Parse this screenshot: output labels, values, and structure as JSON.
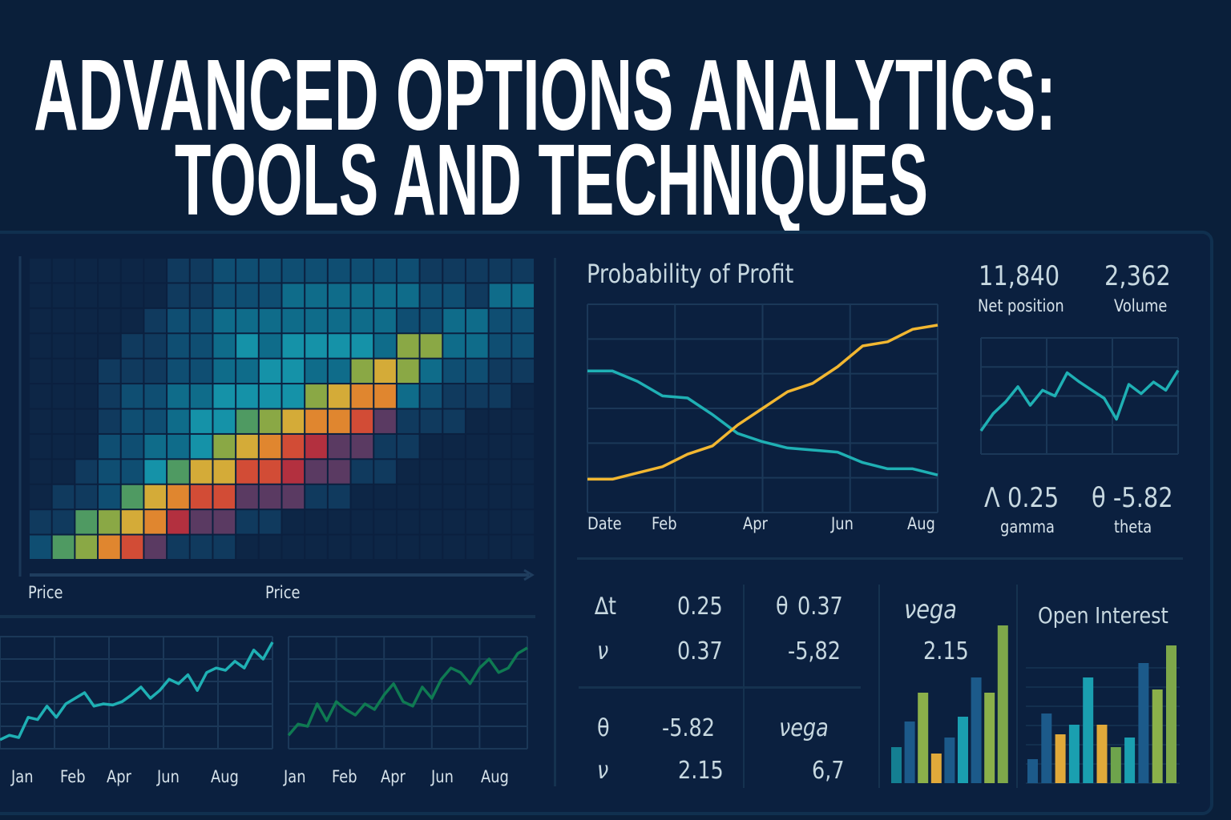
{
  "header": {
    "title_line1": "ADVANCED OPTIONS ANALYTICS:",
    "title_line2": "TOOLS AND TECHNIQUES"
  },
  "colors": {
    "background": "#0a1f3a",
    "panel": "#0b203f",
    "teal": "#1fb0b4",
    "yellow": "#f2b731",
    "green": "#0f7a52",
    "grid": "#1b3858"
  },
  "chart_data": [
    {
      "id": "heatmap",
      "type": "heatmap",
      "xlabels": [
        "Price",
        "Price"
      ],
      "colormap": [
        "#0d2646",
        "#103a5e",
        "#0f4e72",
        "#0f6c8a",
        "#1592a8",
        "#4f9a62",
        "#8aa845",
        "#d4ab38",
        "#e0862f",
        "#d24c36",
        "#b3303f",
        "#5a3a62"
      ],
      "levels": [
        [
          0,
          0,
          0,
          0,
          0,
          0,
          1,
          1,
          2,
          2,
          2,
          2,
          2,
          2,
          2,
          2,
          2,
          1,
          1,
          1,
          1,
          1
        ],
        [
          0,
          0,
          0,
          0,
          0,
          0,
          1,
          1,
          2,
          2,
          2,
          3,
          3,
          3,
          3,
          3,
          3,
          2,
          2,
          1,
          3,
          3
        ],
        [
          0,
          0,
          0,
          0,
          0,
          1,
          2,
          2,
          3,
          3,
          3,
          3,
          3,
          3,
          3,
          3,
          2,
          2,
          3,
          3,
          2,
          2
        ],
        [
          0,
          0,
          0,
          0,
          1,
          1,
          2,
          2,
          3,
          4,
          3,
          4,
          4,
          4,
          4,
          3,
          6,
          6,
          3,
          3,
          2,
          2
        ],
        [
          0,
          0,
          0,
          1,
          1,
          1,
          2,
          2,
          3,
          3,
          4,
          4,
          3,
          3,
          6,
          7,
          6,
          3,
          2,
          2,
          1,
          1
        ],
        [
          0,
          0,
          0,
          1,
          2,
          2,
          3,
          3,
          4,
          4,
          4,
          4,
          6,
          7,
          8,
          8,
          3,
          2,
          1,
          1,
          1,
          0
        ],
        [
          0,
          0,
          0,
          1,
          2,
          2,
          3,
          4,
          4,
          5,
          6,
          7,
          8,
          8,
          9,
          11,
          1,
          1,
          1,
          0,
          0,
          0
        ],
        [
          0,
          0,
          0,
          2,
          2,
          3,
          3,
          4,
          6,
          7,
          8,
          9,
          10,
          11,
          11,
          1,
          1,
          0,
          0,
          0,
          0,
          0
        ],
        [
          0,
          0,
          1,
          2,
          2,
          4,
          5,
          7,
          7,
          9,
          9,
          10,
          11,
          11,
          1,
          1,
          0,
          0,
          0,
          0,
          0,
          0
        ],
        [
          0,
          1,
          1,
          2,
          5,
          7,
          8,
          9,
          9,
          11,
          11,
          11,
          1,
          1,
          0,
          0,
          0,
          0,
          0,
          0,
          0,
          0
        ],
        [
          1,
          1,
          5,
          6,
          7,
          8,
          10,
          11,
          11,
          1,
          1,
          0,
          0,
          0,
          0,
          0,
          0,
          0,
          0,
          0,
          0,
          0
        ],
        [
          2,
          5,
          6,
          8,
          9,
          11,
          1,
          1,
          1,
          0,
          0,
          0,
          0,
          0,
          0,
          0,
          0,
          0,
          0,
          0,
          0,
          0
        ]
      ]
    },
    {
      "id": "probability",
      "type": "line",
      "title": "Probability of Profit",
      "xticks": [
        "Date",
        "Feb",
        "Apr",
        "Jun",
        "Aug"
      ],
      "ylim": [
        0,
        100
      ],
      "series": [
        {
          "color": "#1fb0b4",
          "values": [
            68,
            68,
            63,
            56,
            55,
            47,
            38,
            34,
            31,
            30,
            29,
            24,
            21,
            21,
            18
          ]
        },
        {
          "color": "#f2b731",
          "values": [
            16,
            16,
            19,
            22,
            28,
            32,
            42,
            50,
            58,
            62,
            70,
            80,
            82,
            88,
            90
          ]
        }
      ]
    },
    {
      "id": "mini",
      "type": "line",
      "ylim": [
        0,
        100
      ],
      "series": [
        {
          "color": "#1fb0b4",
          "values": [
            20,
            35,
            45,
            58,
            42,
            55,
            50,
            70,
            62,
            55,
            48,
            30,
            60,
            52,
            62,
            55,
            72
          ]
        }
      ]
    },
    {
      "id": "trend1",
      "type": "line",
      "xticks": [
        "Jan",
        "Feb",
        "Apr",
        "Jun",
        "Aug"
      ],
      "ylim": [
        0,
        100
      ],
      "series": [
        {
          "color": "#1fb0b4",
          "values": [
            8,
            12,
            10,
            28,
            26,
            38,
            28,
            40,
            45,
            50,
            38,
            40,
            39,
            42,
            48,
            55,
            45,
            52,
            62,
            58,
            66,
            52,
            68,
            72,
            70,
            78,
            72,
            88,
            80,
            95
          ]
        }
      ]
    },
    {
      "id": "trend2",
      "type": "line",
      "xticks": [
        "Jan",
        "Feb",
        "Apr",
        "Jun",
        "Aug"
      ],
      "ylim": [
        0,
        100
      ],
      "series": [
        {
          "color": "#0f7a52",
          "values": [
            12,
            22,
            20,
            40,
            25,
            42,
            35,
            30,
            40,
            35,
            48,
            58,
            42,
            38,
            55,
            45,
            62,
            72,
            68,
            58,
            72,
            80,
            68,
            72,
            85,
            90
          ]
        }
      ]
    },
    {
      "id": "vega",
      "type": "bar",
      "values": [
        45,
        77,
        113,
        37,
        57,
        83,
        132,
        113,
        197
      ],
      "colors": [
        "#147f92",
        "#1c5a8a",
        "#8bb04a",
        "#e0a93a",
        "#1c5a8a",
        "#1a9fb0",
        "#1c5a8a",
        "#8bb04a",
        "#7ea84a"
      ]
    },
    {
      "id": "open_interest",
      "type": "bar",
      "title": "Open Interest",
      "values": [
        30,
        87,
        61,
        73,
        132,
        73,
        45,
        57,
        150,
        117,
        172
      ],
      "colors": [
        "#1c5a8a",
        "#1c5a8a",
        "#e0a93a",
        "#1a9fb0",
        "#1a9fb0",
        "#e0a93a",
        "#6ea44c",
        "#1a9fb0",
        "#1c5a8a",
        "#8bb04a",
        "#7ea84a"
      ]
    }
  ],
  "stats": {
    "net_position": {
      "value": "11,840",
      "label": "Net position"
    },
    "volume": {
      "value": "2,362",
      "label": "Volume"
    },
    "gamma": {
      "symbol": "Λ",
      "value": "0.25",
      "label": "gamma"
    },
    "theta": {
      "symbol": "θ",
      "value": "-5.82",
      "label": "theta"
    }
  },
  "greeks": {
    "r1": {
      "sym": "∆t",
      "val": "0.25",
      "sym2": "θ",
      "val2": "0.37"
    },
    "r2": {
      "sym": "ν",
      "val": "0.37",
      "val2": "-5,82"
    },
    "r3": {
      "sym": "θ",
      "val": "-5.82",
      "sym2": "νega"
    },
    "r4": {
      "sym": "ν",
      "val": "2.15",
      "val2": "6,7"
    },
    "vega_label": "νega",
    "vega_value": "2.15"
  }
}
